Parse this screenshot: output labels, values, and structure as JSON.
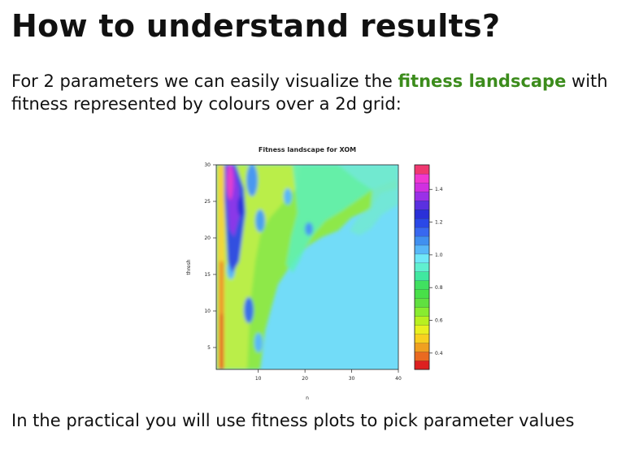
{
  "slide": {
    "title": "How to understand results?",
    "intro_before": "For 2 parameters we can easily visualize the ",
    "intro_highlight": "fitness landscape",
    "intro_after": " with fitness represented by colours over a 2d grid:",
    "footer": "In the practical you will use fitness plots to pick parameter values"
  },
  "colors": {
    "highlight": "#3c8c1c"
  },
  "chart_data": {
    "type": "heatmap",
    "title": "Fitness landscape for XOM",
    "xlabel": "n",
    "ylabel": "thresh",
    "xlim": [
      1,
      40
    ],
    "ylim": [
      2,
      30
    ],
    "x_ticks": [
      10,
      20,
      30,
      40
    ],
    "y_ticks": [
      5,
      10,
      15,
      20,
      25,
      30
    ],
    "colorbar": {
      "range": [
        0.3,
        1.55
      ],
      "ticks": [
        0.4,
        0.6,
        0.8,
        1.0,
        1.2,
        1.4
      ],
      "tick_labels": [
        "0.4",
        "0.6",
        "0.8",
        "1.0",
        "1.2",
        "1.4"
      ],
      "colors": [
        "#dd2020",
        "#ea6a20",
        "#f0a020",
        "#f8d020",
        "#e8f020",
        "#b8f020",
        "#88ec30",
        "#60e040",
        "#48e048",
        "#40e060",
        "#40e8a0",
        "#60f0d0",
        "#70e8f8",
        "#58b8f8",
        "#4090f0",
        "#3868f0",
        "#2a48e8",
        "#2a30d8",
        "#5a30e0",
        "#9a30e8",
        "#d030e0",
        "#f038d0",
        "#f03870"
      ]
    },
    "regions": [
      {
        "label": "low-fitness diagonal region (upper right)",
        "fitness": 0.95
      },
      {
        "label": "high-fitness band near n=3-5, thresh 14-30",
        "fitness": 1.3
      },
      {
        "label": "red stripe near n=1-2",
        "fitness": 0.35
      },
      {
        "label": "plateau for n>10, thresh<18",
        "fitness": 1.05
      }
    ]
  }
}
